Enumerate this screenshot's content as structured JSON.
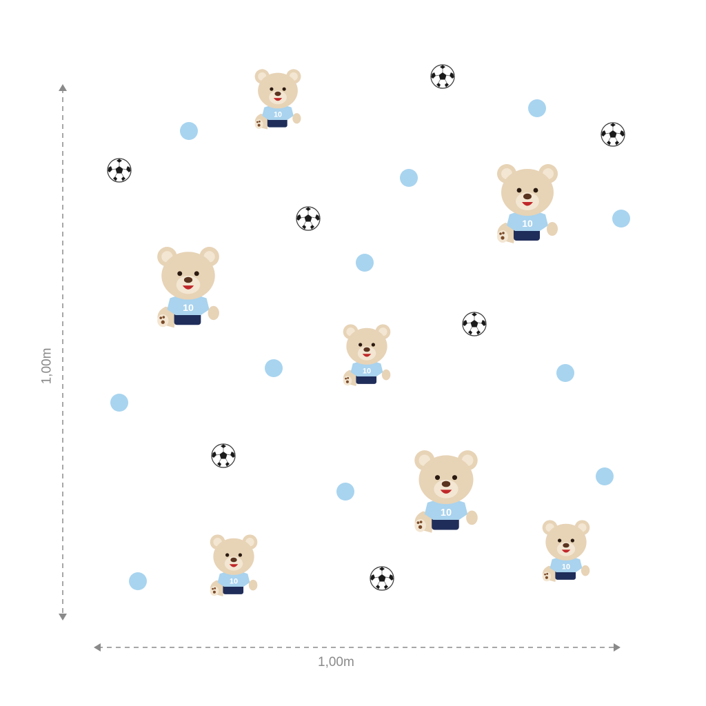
{
  "dimensions": {
    "height_label": "1,00m",
    "width_label": "1,00m"
  },
  "sticker": {
    "jersey_number": "10"
  },
  "colors": {
    "dot": "#a8d4ef",
    "bear_fur": "#e7d3b6",
    "jersey": "#a9d3ee",
    "shorts": "#1f2d5a",
    "dimension_line": "#8a8a8a"
  },
  "icons": [
    "teddy-bear-with-soccer-ball",
    "soccer-ball",
    "blue-dot",
    "arrow-up-icon",
    "arrow-down-icon",
    "arrow-left-icon",
    "arrow-right-icon"
  ]
}
